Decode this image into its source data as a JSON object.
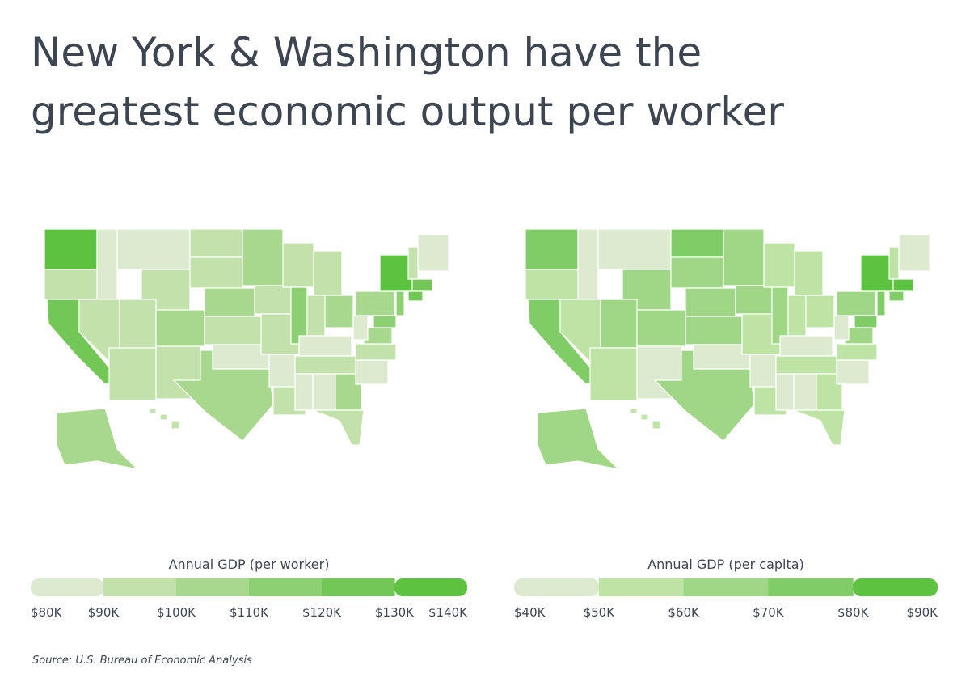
{
  "header": {
    "title_lines": [
      "New York & Washington have the",
      "greatest economic output per worker"
    ]
  },
  "maps": [
    {
      "legend_title": "Annual GDP (per worker)",
      "colors": [
        "#dcebcf",
        "#c3e2ab",
        "#a8d78e",
        "#8dcf73",
        "#72c756",
        "#5cc240"
      ],
      "ticks": [
        {
          "value": 80000,
          "label": "$80K"
        },
        {
          "value": 90000,
          "label": "$90K"
        },
        {
          "value": 100000,
          "label": "$100K"
        },
        {
          "value": 110000,
          "label": "$110K"
        },
        {
          "value": 120000,
          "label": "$120K"
        },
        {
          "value": 130000,
          "label": "$130K"
        },
        {
          "value": 140000,
          "label": "$140K"
        }
      ]
    },
    {
      "legend_title": "Annual GDP (per capita)",
      "colors": [
        "#dcebcf",
        "#bde3a5",
        "#9fd786",
        "#80cc66",
        "#5cc240"
      ],
      "ticks": [
        {
          "value": 40000,
          "label": "$40K"
        },
        {
          "value": 50000,
          "label": "$50K"
        },
        {
          "value": 60000,
          "label": "$60K"
        },
        {
          "value": 70000,
          "label": "$70K"
        },
        {
          "value": 80000,
          "label": "$80K"
        },
        {
          "value": 90000,
          "label": "$90K"
        }
      ]
    }
  ],
  "footer": {
    "source": "Source:  U.S. Bureau of Economic Analysis"
  }
}
